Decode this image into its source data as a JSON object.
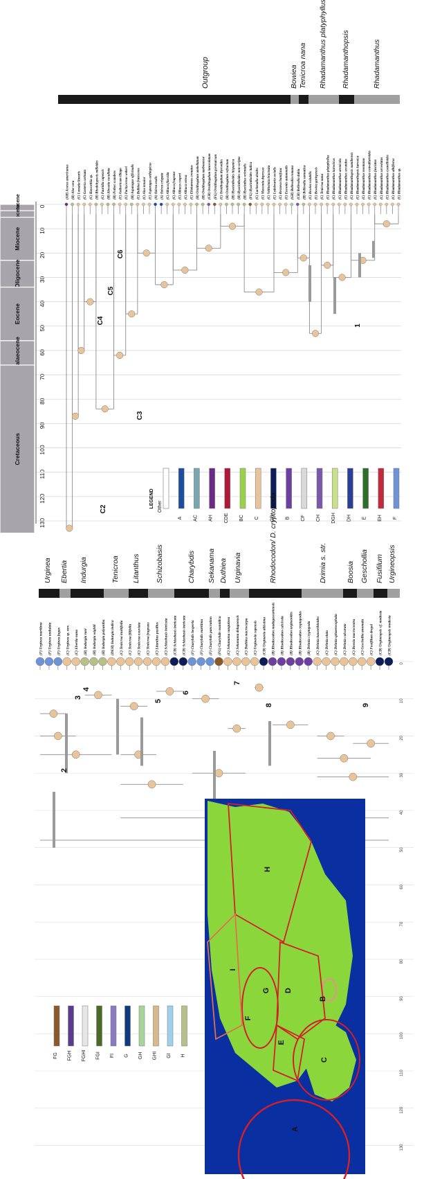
{
  "geo_timescale": {
    "epochs": [
      "Pleistocene",
      "Pliocene",
      "Miocene",
      "Oligocene",
      "Eocene",
      "Palaeocene",
      "Cretaceous"
    ],
    "ticks": [
      "0",
      "10",
      "20",
      "30",
      "40",
      "50",
      "60",
      "70",
      "80",
      "90",
      "100",
      "110",
      "120",
      "130"
    ]
  },
  "top_panel": {
    "clade_labels": [
      "Outgroup",
      "Bowiea",
      "Tenicroa nana",
      "Rhadamanthus platyphyllus",
      "Rhadamanthopsis",
      "Rhadamanthus"
    ],
    "node_labels": [
      "C2",
      "C3",
      "C4",
      "C5",
      "C6",
      "1"
    ],
    "taxa": [
      "(AH) Acorus americanus",
      "(H) Aloe vera",
      "(C) Lomatia linearis",
      "(C) Gasteria carinata",
      "(C) Haworthia sp.",
      "(H) Rhodohypoxis milloides",
      "(C) Pauridia capensis",
      "(H) Alocasia cucullata",
      "(H) Pothos scandens",
      "(C) Anthericum liliago",
      "(C) Pachycereus weberi",
      "(H) Asparagus officinalis",
      "(C) Bulbine frutescens",
      "(C) Aloe tenuior",
      "(C) Asparagus aethiopicus",
      "(A) Ozirea ovalis",
      "(A) Ozirea crispata",
      "(C) Albuca flaccida",
      "(C) Albuca fragrans",
      "(C) Albuca cooperi",
      "(C) Albuca setosa",
      "(C) Eliokarmos crenatus",
      "(H) Ornithogalum umbellatum",
      "(H) Ornithogalum narbonense",
      "(CH) Ornithogalum lanceolatum",
      "(FG) Ornithogalum pyrenaicum",
      "(C) Ornithogalum thyrsoides",
      "(H) Ornithogalum refractum",
      "(H) Hyacinthoides hispanica",
      "(H) Hyacinthoides non-scripta",
      "(H) Hyacinthus orientalis",
      "(FG) Hyacinthoides italica",
      "(C) Lachenalia aloides",
      "(C) Massonia depressa",
      "(C) Veltheimia bracteata",
      "(C) Ledebouria socialis",
      "(C) Resnova humifusa",
      "(C) Eucomis autumnalis",
      "(GH) Bellevalia romana",
      "(CH) Bellevalia dubia",
      "(H) Bellevalia sarmatica",
      "(C) Bowiea volubilis",
      "(C) Bowiea gariepensis",
      "(C) Tenicroa nana",
      "(C) Rhadamanthus platyphyllus",
      "(C) Rhadamanthus karooicus",
      "(C) Rhadamanthus arenicola",
      "(C) Rhadamanthus secundus",
      "(C) Rhadamanthopsis namibensis",
      "(C) Rhadamanthopsis karooica",
      "(C) Rhadamanthus montanus",
      "(C) Rhadamanthus convallarioides",
      "(C) Rhadamanthus fasciatus",
      "(C) Rhadamanthus urceolatus",
      "(C) Rhadamanthus cyanelloides",
      "(C) Rhadamanthus albiflorus",
      "(C) Rhadamanthus sp."
    ]
  },
  "legend": {
    "title": "LEGEND",
    "items": [
      {
        "label": "Other",
        "color": "#ffffff"
      },
      {
        "label": "A",
        "color": "#1d4e9e"
      },
      {
        "label": "AC",
        "color": "#7aa6b0"
      },
      {
        "label": "AH",
        "color": "#6b2a86"
      },
      {
        "label": "CDE",
        "color": "#b0183a"
      },
      {
        "label": "BC",
        "color": "#9bd14a"
      },
      {
        "label": "C",
        "color": "#e8c49a"
      },
      {
        "label": "CD",
        "color": "#0d1d5a"
      },
      {
        "label": "B",
        "color": "#6c3fa0"
      },
      {
        "label": "CF",
        "color": "#d9d9d9"
      },
      {
        "label": "CH",
        "color": "#7a5aa8"
      },
      {
        "label": "DGH",
        "color": "#c8e08a"
      },
      {
        "label": "DH",
        "color": "#2a3f95"
      },
      {
        "label": "E",
        "color": "#2f6e2a"
      },
      {
        "label": "EH",
        "color": "#c12a3a"
      },
      {
        "label": "F",
        "color": "#6e93d6"
      },
      {
        "label": "FG",
        "color": "#8a5a2c"
      },
      {
        "label": "FGH",
        "color": "#5b3c8c"
      },
      {
        "label": "FGHI",
        "color": "#e6e6e6"
      },
      {
        "label": "FGI",
        "color": "#4a6a2a"
      },
      {
        "label": "FI",
        "color": "#8a7ac0"
      },
      {
        "label": "G",
        "color": "#0f3a80"
      },
      {
        "label": "GH",
        "color": "#a8d49a"
      },
      {
        "label": "GHI",
        "color": "#d8b88a"
      },
      {
        "label": "GI",
        "color": "#9fd0ea"
      },
      {
        "label": "H",
        "color": "#b8c08a"
      }
    ]
  },
  "bottom_panel": {
    "clade_labels": [
      "Urginea",
      "Ebertia",
      "Indurgia",
      "Tenicroa",
      "Litanthus",
      "Schizobasis",
      "Charybdis",
      "Sekanama",
      "Duthiea",
      "Urginavia",
      "Rhodocodon/ D. cryptopoda",
      "Drimia s. str.",
      "Boosia",
      "Geschollia",
      "Fusifilum",
      "Urgineopsis"
    ],
    "node_labels": [
      "2",
      "3",
      "4",
      "5",
      "6",
      "7",
      "8",
      "9"
    ],
    "taxa": [
      "(F) Urginea maritima",
      "(F) Urginea undulata",
      "(F) Urginea fugax",
      "(C) Urginea sp. nov.",
      "(C) Ebertia nana",
      "(H) Indurgia raoi",
      "(H) Indurgia wightii",
      "(H) Indurgia polyantha",
      "(DEH) Indurgia indica",
      "(C) Tenicroa multifolia",
      "(C) Tenicroa filifolia",
      "(C) Tenicroa exuviata",
      "(C) Tenicroa fragrans",
      "(C) Litanthus pusillus",
      "(C) Schizobasis intricata",
      "(CD) Schizobasis intricata",
      "(CD) Schizobasis intricata",
      "(F) Charybdis hesperia",
      "(F) Charybdis maritima",
      "(F) Charybdis pancration",
      "(FG) Charybdis numidica",
      "(C) Sekanama sanguinea",
      "(C) Sekanama delagoensis",
      "(C) Duthiea macrocarpa",
      "(C) Urginavia capensis",
      "(CD) Urginavia altissima",
      "(B) Rhodocodon madagascariensis",
      "(B) Rhodocodon calcicola",
      "(B) Rhodocodon urgineoides",
      "(B) Rhodocodon cryptopodus",
      "(B) Drimia cryptopoda",
      "(C) Drimia haworthioides",
      "(C) Drimia elata",
      "(C) Drimia sphaerocephala",
      "(C) Drimia calcarata",
      "(C) Boosia macrocentra",
      "(C) Geschollia anomala",
      "(C) Fusifilum dregei",
      "(CD) Urgineopsis cf. modesta",
      "(CD) Urgineopsis modesta"
    ]
  },
  "map": {
    "region_labels": [
      "A",
      "B",
      "C",
      "D",
      "E",
      "F",
      "G",
      "H",
      "I"
    ]
  },
  "colors": {
    "band_grey": "#a8a4ab",
    "ocean": "#0a2fa0",
    "land": "#8bd63a",
    "region_border": "#d0202a",
    "tree_line": "#8c8c8c",
    "hpd_bar": "#9a9a9a"
  }
}
